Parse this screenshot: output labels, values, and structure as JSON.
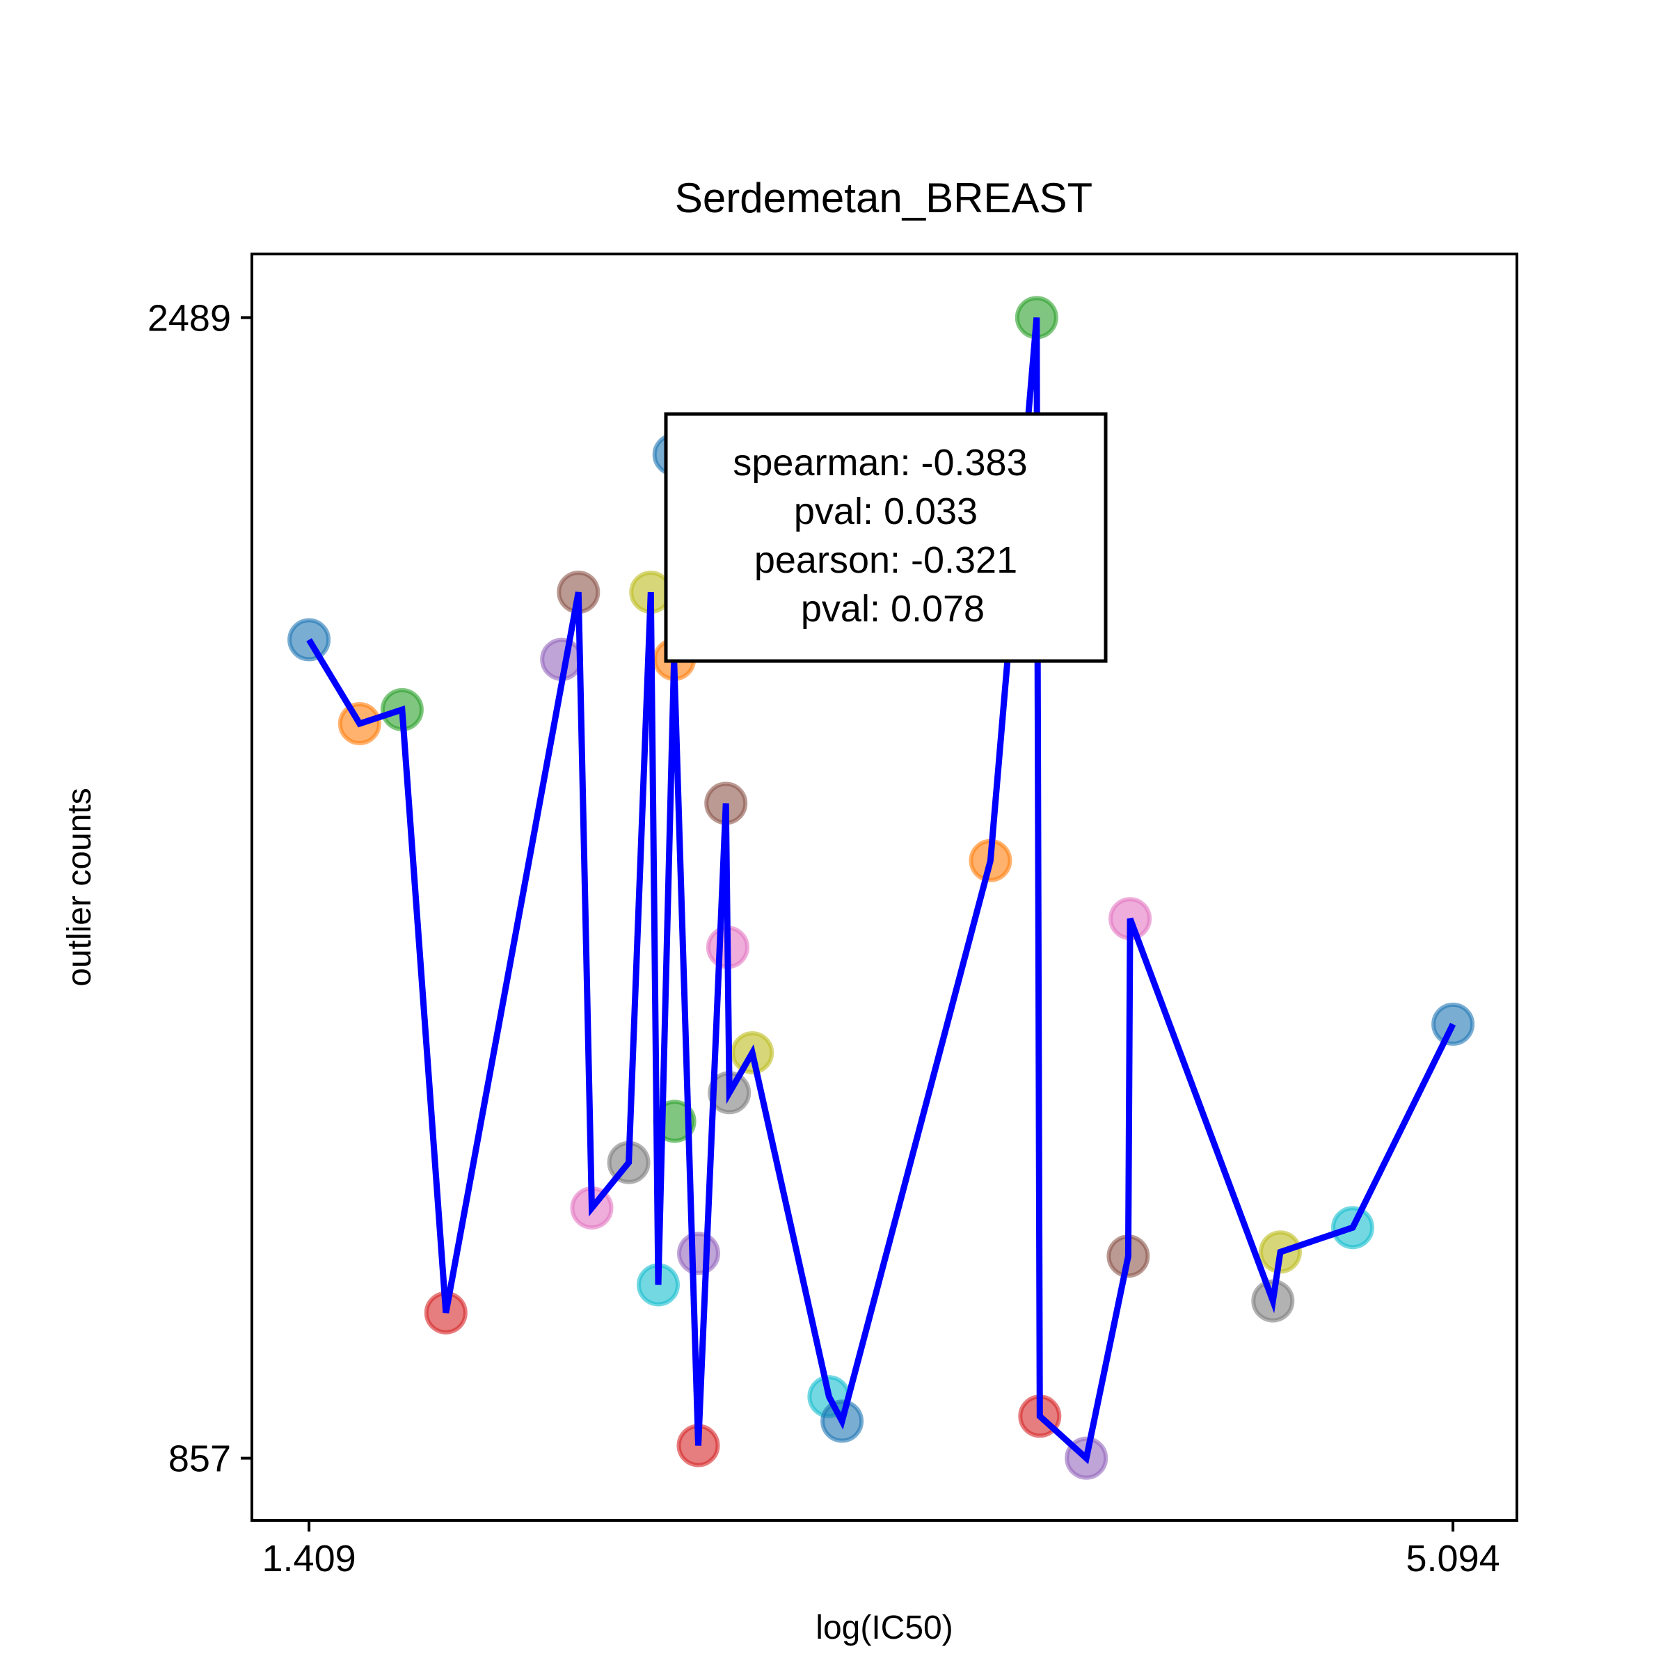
{
  "chart_data": {
    "type": "scatter",
    "title": "Serdemetan_BREAST",
    "xlabel": "log(IC50)",
    "ylabel": "outlier counts",
    "x_tick_labels": [
      "1.409",
      "5.094"
    ],
    "y_tick_labels": [
      "857",
      "2489"
    ],
    "xlim": [
      1.225,
      5.3
    ],
    "ylim": [
      768,
      2580
    ],
    "grid": false,
    "line_color": "#0000ff",
    "points": [
      {
        "x": 1.409,
        "y": 2028,
        "color": "#1f77b4"
      },
      {
        "x": 1.572,
        "y": 1908,
        "color": "#ff7f0e"
      },
      {
        "x": 1.709,
        "y": 1928,
        "color": "#2ca02c"
      },
      {
        "x": 1.85,
        "y": 1065,
        "color": "#d62728"
      },
      {
        "x": 2.223,
        "y": 2000,
        "color": "#9467bd"
      },
      {
        "x": 2.277,
        "y": 2096,
        "color": "#8c564b"
      },
      {
        "x": 2.32,
        "y": 1215,
        "color": "#e377c2"
      },
      {
        "x": 2.439,
        "y": 1280,
        "color": "#7f7f7f"
      },
      {
        "x": 2.51,
        "y": 2096,
        "color": "#bcbd22"
      },
      {
        "x": 2.534,
        "y": 1105,
        "color": "#17becf"
      },
      {
        "x": 2.585,
        "y": 2293,
        "color": "#1f77b4"
      },
      {
        "x": 2.586,
        "y": 2000,
        "color": "#ff7f0e"
      },
      {
        "x": 2.587,
        "y": 1339,
        "color": "#2ca02c"
      },
      {
        "x": 2.663,
        "y": 875,
        "color": "#d62728"
      },
      {
        "x": 2.664,
        "y": 1150,
        "color": "#9467bd"
      },
      {
        "x": 2.752,
        "y": 1794,
        "color": "#8c564b"
      },
      {
        "x": 2.758,
        "y": 1588,
        "color": "#e377c2"
      },
      {
        "x": 2.763,
        "y": 1380,
        "color": "#7f7f7f"
      },
      {
        "x": 2.837,
        "y": 1437,
        "color": "#bcbd22"
      },
      {
        "x": 3.084,
        "y": 945,
        "color": "#17becf"
      },
      {
        "x": 3.126,
        "y": 910,
        "color": "#1f77b4"
      },
      {
        "x": 3.604,
        "y": 1712,
        "color": "#ff7f0e"
      },
      {
        "x": 3.753,
        "y": 2489,
        "color": "#2ca02c"
      },
      {
        "x": 3.763,
        "y": 917,
        "color": "#d62728"
      },
      {
        "x": 3.913,
        "y": 857,
        "color": "#9467bd"
      },
      {
        "x": 4.048,
        "y": 1146,
        "color": "#8c564b"
      },
      {
        "x": 4.054,
        "y": 1629,
        "color": "#e377c2"
      },
      {
        "x": 4.514,
        "y": 1082,
        "color": "#7f7f7f"
      },
      {
        "x": 4.538,
        "y": 1152,
        "color": "#bcbd22"
      },
      {
        "x": 4.771,
        "y": 1187,
        "color": "#17becf"
      },
      {
        "x": 5.094,
        "y": 1478,
        "color": "#1f77b4"
      }
    ],
    "line": {
      "x": [
        1.409,
        1.572,
        1.709,
        1.85,
        2.277,
        2.32,
        2.439,
        2.51,
        2.534,
        2.585,
        2.663,
        2.752,
        2.763,
        2.837,
        3.084,
        3.126,
        3.604,
        3.753,
        3.763,
        3.913,
        4.048,
        4.054,
        4.514,
        4.538,
        4.771,
        5.094
      ],
      "y": [
        2028,
        1908,
        1928,
        1065,
        2096,
        1215,
        1280,
        2096,
        1105,
        2000,
        875,
        1794,
        1380,
        1437,
        945,
        910,
        1712,
        2489,
        917,
        857,
        1146,
        1629,
        1082,
        1152,
        1187,
        1478
      ]
    },
    "annotation": {
      "lines": [
        "spearman: -0.383",
        "pval: 0.033",
        "pearson: -0.321",
        "pval: 0.078"
      ],
      "placement": "top-center"
    }
  }
}
